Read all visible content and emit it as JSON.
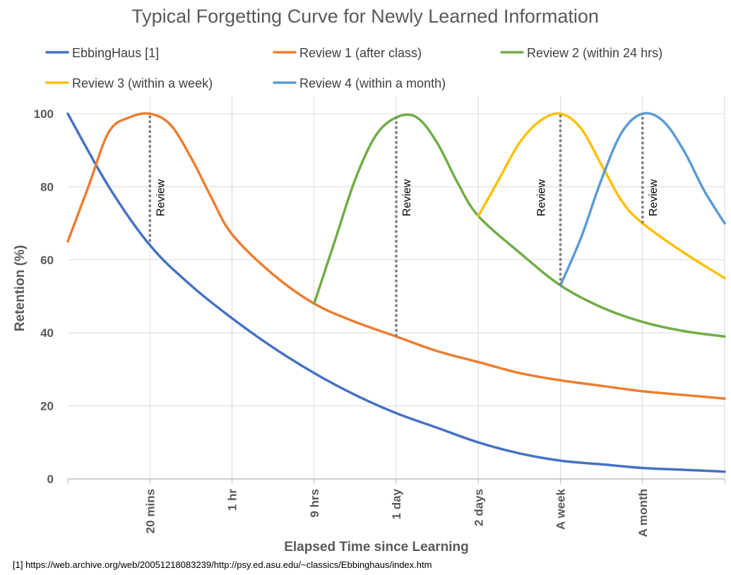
{
  "chart_data": {
    "type": "line",
    "title": "Typical Forgetting Curve for Newly Learned Information",
    "xlabel": "Elapsed Time since Learning",
    "ylabel": "Retention (%)",
    "ylim": [
      0,
      100
    ],
    "yticks": [
      0,
      20,
      40,
      60,
      80,
      100
    ],
    "xlim": [
      0,
      8
    ],
    "categories": [
      "",
      "20 mins",
      "1 hr",
      "9 hrs",
      "1 day",
      "2 days",
      "A week",
      "A month",
      ""
    ],
    "grid": true,
    "legend": "top",
    "series": [
      {
        "name": "EbbingHaus [1]",
        "color": "#4472C4",
        "x": [
          0,
          0.5,
          1,
          1.5,
          2,
          2.5,
          3,
          3.5,
          4,
          4.5,
          5,
          5.5,
          6,
          6.5,
          7,
          7.5,
          8
        ],
        "y": [
          100,
          80,
          64,
          53,
          44,
          36,
          29,
          23,
          18,
          14,
          10,
          7,
          5,
          4,
          3,
          2.5,
          2
        ]
      },
      {
        "name": "Review 1 (after class)",
        "color": "#ED7D31",
        "x": [
          0,
          0.25,
          0.5,
          0.75,
          1,
          1.25,
          1.5,
          1.75,
          2,
          2.5,
          3,
          3.5,
          4,
          4.5,
          5,
          5.5,
          6,
          6.5,
          7,
          7.5,
          8
        ],
        "y": [
          65,
          80,
          95,
          99,
          100,
          97,
          88,
          77,
          67,
          56,
          48,
          43,
          39,
          35,
          32,
          29,
          27,
          25.5,
          24,
          23,
          22
        ]
      },
      {
        "name": "Review 2 (within 24 hrs)",
        "color": "#70AD47",
        "x": [
          3,
          3.25,
          3.5,
          3.75,
          4,
          4.25,
          4.5,
          4.75,
          5,
          5.5,
          6,
          6.5,
          7,
          7.5,
          8
        ],
        "y": [
          48,
          65,
          82,
          94,
          99,
          99,
          92,
          81,
          72,
          62,
          53,
          47,
          43,
          40.5,
          39
        ]
      },
      {
        "name": "Review 3 (within a week)",
        "color": "#FFC000",
        "x": [
          5,
          5.25,
          5.5,
          5.75,
          6,
          6.25,
          6.5,
          6.75,
          7,
          7.5,
          8
        ],
        "y": [
          72,
          82,
          92,
          98,
          100,
          96,
          86,
          76,
          70,
          62,
          55
        ]
      },
      {
        "name": "Review 4 (within a month)",
        "color": "#5B9BD5",
        "x": [
          6,
          6.25,
          6.5,
          6.75,
          7,
          7.25,
          7.5,
          7.75,
          8
        ],
        "y": [
          53,
          66,
          82,
          95,
          100,
          98,
          90,
          79,
          70
        ]
      }
    ],
    "annotations": [
      {
        "text": "Review",
        "x": 1,
        "y_from": 65,
        "y_to": 100,
        "label_side": "right"
      },
      {
        "text": "Review",
        "x": 4,
        "y_from": 39,
        "y_to": 99,
        "label_side": "right"
      },
      {
        "text": "Review",
        "x": 6,
        "y_from": 53,
        "y_to": 100,
        "label_side": "left"
      },
      {
        "text": "Review",
        "x": 7,
        "y_from": 70,
        "y_to": 100,
        "label_side": "right"
      }
    ],
    "footnote": "[1] https://web.archive.org/web/20051218083239/http://psy.ed.asu.edu/~classics/Ebbinghaus/index.htm"
  }
}
